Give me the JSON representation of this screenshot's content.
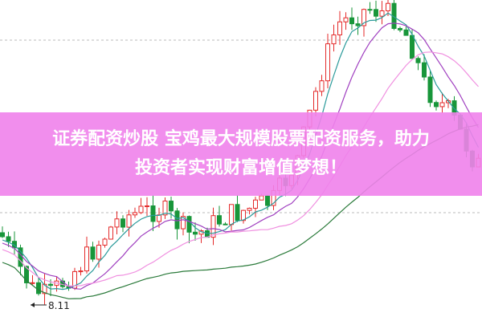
{
  "banner": {
    "lines": [
      "证券配资炒股 宝鸡最大规模股票配资服务，助力",
      "投资者实现财富增值梦想！"
    ]
  },
  "low_marker": {
    "label": "8.11"
  }
}
